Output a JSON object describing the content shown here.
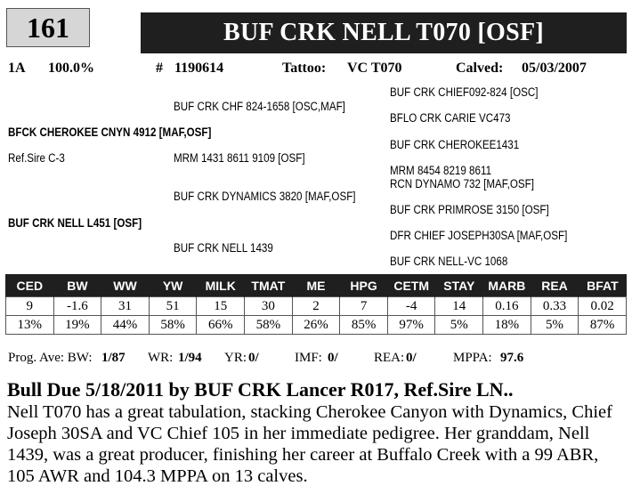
{
  "header": {
    "lot_number": "161",
    "animal_name": "BUF CRK  NELL T070 [OSF]"
  },
  "info": {
    "code": "1A",
    "percent": "100.0%",
    "reg_prefix": "#",
    "reg_number": "1190614",
    "tattoo_label": "Tattoo:",
    "tattoo_value": "VC T070",
    "calved_label": "Calved:",
    "calved_value": "05/03/2007"
  },
  "pedigree": {
    "sire": "BFCK CHEROKEE CNYN 4912 [MAF,OSF]",
    "ref_sire": "Ref.Sire C-3",
    "dam": "BUF CRK NELL L451 [OSF]",
    "sire_sire": "BUF CRK CHF 824-1658 [OSC,MAF]",
    "sire_dam": "MRM 1431 8611 9109  [OSF]",
    "dam_sire": "BUF CRK DYNAMICS 3820 [MAF,OSF]",
    "dam_dam": "BUF CRK NELL 1439",
    "ss_sire": "BUF CRK CHIEF092-824 [OSC]",
    "ss_dam": "BFLO CRK CARIE VC473",
    "sd_sire": "BUF CRK CHEROKEE1431",
    "sd_dam": "MRM 8454 8219 8611",
    "ds_sire": "RCN DYNAMO 732  [MAF,OSF]",
    "ds_dam": "BUF CRK PRIMROSE 3150 [OSF]",
    "dd_sire": "DFR CHIEF JOSEPH30SA [MAF,OSF]",
    "dd_dam": "BUF CRK NELL-VC 1068"
  },
  "epd_table": {
    "headers": [
      "CED",
      "BW",
      "WW",
      "YW",
      "MILK",
      "TMAT",
      "ME",
      "HPG",
      "CETM",
      "STAY",
      "MARB",
      "REA",
      "BFAT"
    ],
    "values": [
      "9",
      "-1.6",
      "31",
      "51",
      "15",
      "30",
      "2",
      "7",
      "-4",
      "14",
      "0.16",
      "0.33",
      "0.02"
    ],
    "percentiles": [
      "13%",
      "19%",
      "44%",
      "58%",
      "66%",
      "58%",
      "26%",
      "85%",
      "97%",
      "5%",
      "18%",
      "5%",
      "87%"
    ]
  },
  "progeny": {
    "bw_label": "Prog. Ave: BW:",
    "bw_value": "1/87",
    "wr_label": "WR:",
    "wr_value": "1/94",
    "yr_label": "YR:",
    "yr_value": "0/",
    "imf_label": "IMF:",
    "imf_value": "0/",
    "rea_label": "REA:",
    "rea_value": "0/",
    "mppa_label": "MPPA:",
    "mppa_value": "97.6"
  },
  "headline": "Bull Due 5/18/2011 by BUF CRK Lancer R017, Ref.Sire LN..",
  "description": "Nell T070 has a great tabulation, stacking Cherokee Canyon with Dynamics, Chief Joseph 30SA and VC Chief 105 in her immediate pedigree.  Her granddam, Nell 1439, was a great producer, finishing her career at Buffalo Creek with a 99 ABR, 105 AWR and 104.3 MPPA on 13 calves."
}
